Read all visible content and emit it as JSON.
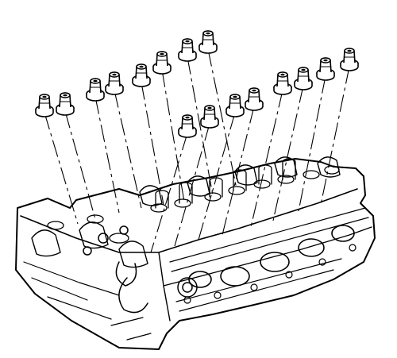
{
  "diagram": {
    "labels": [],
    "parts": {
      "seal": "valve-stem-oil-seal",
      "head": "cylinder-head"
    },
    "seal_count": 16,
    "colors": {
      "ink": "#000000",
      "paper": "#ffffff"
    }
  }
}
